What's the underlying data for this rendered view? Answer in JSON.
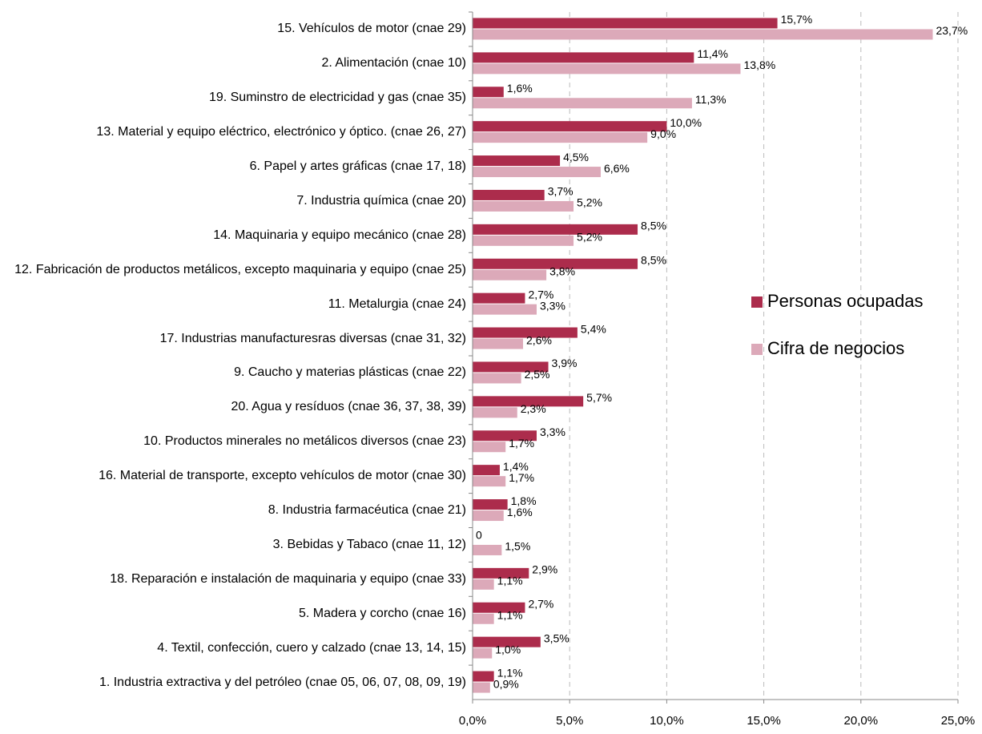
{
  "chart_data": {
    "type": "bar",
    "orientation": "horizontal",
    "categories": [
      "15. Vehículos de motor (cnae 29)",
      "2. Alimentación (cnae 10)",
      "19. Suminstro de electricidad y gas (cnae 35)",
      "13. Material y equipo eléctrico, electrónico y óptico. (cnae 26, 27)",
      "6. Papel y artes gráficas (cnae 17, 18)",
      "7. Industria química (cnae 20)",
      "14. Maquinaria y equipo mecánico (cnae 28)",
      "12. Fabricación de productos metálicos, excepto maquinaria y equipo (cnae 25)",
      "11. Metalurgia (cnae 24)",
      "17. Industrias manufacturesras diversas (cnae 31, 32)",
      "9. Caucho y materias plásticas (cnae 22)",
      "20. Agua y resíduos (cnae 36, 37, 38, 39)",
      "10. Productos minerales no metálicos diversos (cnae 23)",
      "16. Material de transporte, excepto vehículos de motor (cnae 30)",
      "8. Industria farmacéutica (cnae 21)",
      "3. Bebidas y Tabaco (cnae 11, 12)",
      "18. Reparación e instalación de maquinaria y equipo (cnae 33)",
      "5. Madera y corcho (cnae 16)",
      "4. Textil, confección, cuero y calzado (cnae 13, 14, 15)",
      "1. Industria extractiva y del petróleo (cnae 05, 06, 07, 08, 09, 19)"
    ],
    "series": [
      {
        "name": "Personas ocupadas",
        "color": "#ac2c4c",
        "values": [
          15.7,
          11.4,
          1.6,
          10.0,
          4.5,
          3.7,
          8.5,
          8.5,
          2.7,
          5.4,
          3.9,
          5.7,
          3.3,
          1.4,
          1.8,
          0,
          2.9,
          2.7,
          3.5,
          1.1
        ],
        "value_labels": [
          "15,7%",
          "11,4%",
          "1,6%",
          "10,0%",
          "4,5%",
          "3,7%",
          "8,5%",
          "8,5%",
          "2,7%",
          "5,4%",
          "3,9%",
          "5,7%",
          "3,3%",
          "1,4%",
          "1,8%",
          "0",
          "2,9%",
          "2,7%",
          "3,5%",
          "1,1%"
        ]
      },
      {
        "name": "Cifra de negocios",
        "color": "#dca9b9",
        "values": [
          23.7,
          13.8,
          11.3,
          9.0,
          6.6,
          5.2,
          5.2,
          3.8,
          3.3,
          2.6,
          2.5,
          2.3,
          1.7,
          1.7,
          1.6,
          1.5,
          1.1,
          1.1,
          1.0,
          0.9
        ],
        "value_labels": [
          "23,7%",
          "13,8%",
          "11,3%",
          "9,0%",
          "6,6%",
          "5,2%",
          "5,2%",
          "3,8%",
          "3,3%",
          "2,6%",
          "2,5%",
          "2,3%",
          "1,7%",
          "1,7%",
          "1,6%",
          "1,5%",
          "1,1%",
          "1,1%",
          "1,0%",
          "0,9%"
        ]
      }
    ],
    "xlim": [
      0,
      25
    ],
    "xticks": [
      {
        "value": 0,
        "label": "0,0%"
      },
      {
        "value": 5,
        "label": "5,0%"
      },
      {
        "value": 10,
        "label": "10,0%"
      },
      {
        "value": 15,
        "label": "15,0%"
      },
      {
        "value": 20,
        "label": "20,0%"
      },
      {
        "value": 25,
        "label": "25,0%"
      }
    ],
    "grid": true,
    "legend": "right"
  }
}
